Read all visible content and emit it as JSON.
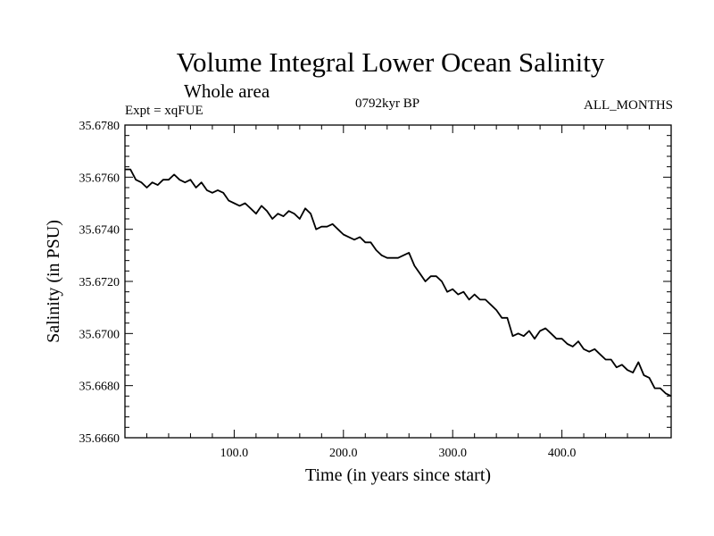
{
  "header": {
    "title": "Volume Integral Lower Ocean Salinity",
    "subtitle": "Whole area",
    "experiment": "Expt = xqFUE",
    "period": "0792kyr BP",
    "months": "ALL_MONTHS"
  },
  "chart_data": {
    "type": "line",
    "title": "Volume Integral Lower Ocean Salinity",
    "xlabel": "Time (in years since start)",
    "ylabel": "Salinity (in PSU)",
    "xlim": [
      0,
      500
    ],
    "ylim": [
      35.666,
      35.678
    ],
    "x_ticks": [
      100,
      200,
      300,
      400
    ],
    "x_tick_labels": [
      "100.0",
      "200.0",
      "300.0",
      "400.0"
    ],
    "y_ticks": [
      35.666,
      35.668,
      35.67,
      35.672,
      35.674,
      35.676,
      35.678
    ],
    "y_tick_labels": [
      "35.6660",
      "35.6680",
      "35.6700",
      "35.6720",
      "35.6740",
      "35.6760",
      "35.6780"
    ],
    "series": [
      {
        "name": "Lower ocean salinity",
        "color": "#000000",
        "x": [
          0,
          5,
          10,
          15,
          20,
          25,
          30,
          35,
          40,
          45,
          50,
          55,
          60,
          65,
          70,
          75,
          80,
          85,
          90,
          95,
          100,
          105,
          110,
          115,
          120,
          125,
          130,
          135,
          140,
          145,
          150,
          155,
          160,
          165,
          170,
          175,
          180,
          185,
          190,
          195,
          200,
          205,
          210,
          215,
          220,
          225,
          230,
          235,
          240,
          245,
          250,
          255,
          260,
          265,
          270,
          275,
          280,
          285,
          290,
          295,
          300,
          305,
          310,
          315,
          320,
          325,
          330,
          335,
          340,
          345,
          350,
          355,
          360,
          365,
          370,
          375,
          380,
          385,
          390,
          395,
          400,
          405,
          410,
          415,
          420,
          425,
          430,
          435,
          440,
          445,
          450,
          455,
          460,
          465,
          470,
          475,
          480,
          485,
          490,
          495,
          500
        ],
        "values": [
          35.6763,
          35.6763,
          35.6759,
          35.6758,
          35.6756,
          35.6758,
          35.6757,
          35.6759,
          35.6759,
          35.6761,
          35.6759,
          35.6758,
          35.6759,
          35.6756,
          35.6758,
          35.6755,
          35.6754,
          35.6755,
          35.6754,
          35.6751,
          35.675,
          35.6749,
          35.675,
          35.6748,
          35.6746,
          35.6749,
          35.6747,
          35.6744,
          35.6746,
          35.6745,
          35.6747,
          35.6746,
          35.6744,
          35.6748,
          35.6746,
          35.674,
          35.6741,
          35.6741,
          35.6742,
          35.674,
          35.6738,
          35.6737,
          35.6736,
          35.6737,
          35.6735,
          35.6735,
          35.6732,
          35.673,
          35.6729,
          35.6729,
          35.6729,
          35.673,
          35.6731,
          35.6726,
          35.6723,
          35.672,
          35.6722,
          35.6722,
          35.672,
          35.6716,
          35.6717,
          35.6715,
          35.6716,
          35.6713,
          35.6715,
          35.6713,
          35.6713,
          35.6711,
          35.6709,
          35.6706,
          35.6706,
          35.6699,
          35.67,
          35.6699,
          35.6701,
          35.6698,
          35.6701,
          35.6702,
          35.67,
          35.6698,
          35.6698,
          35.6696,
          35.6695,
          35.6697,
          35.6694,
          35.6693,
          35.6694,
          35.6692,
          35.669,
          35.669,
          35.6687,
          35.6688,
          35.6686,
          35.6685,
          35.6689,
          35.6684,
          35.6683,
          35.6679,
          35.6679,
          35.6677,
          35.6676
        ]
      }
    ]
  }
}
